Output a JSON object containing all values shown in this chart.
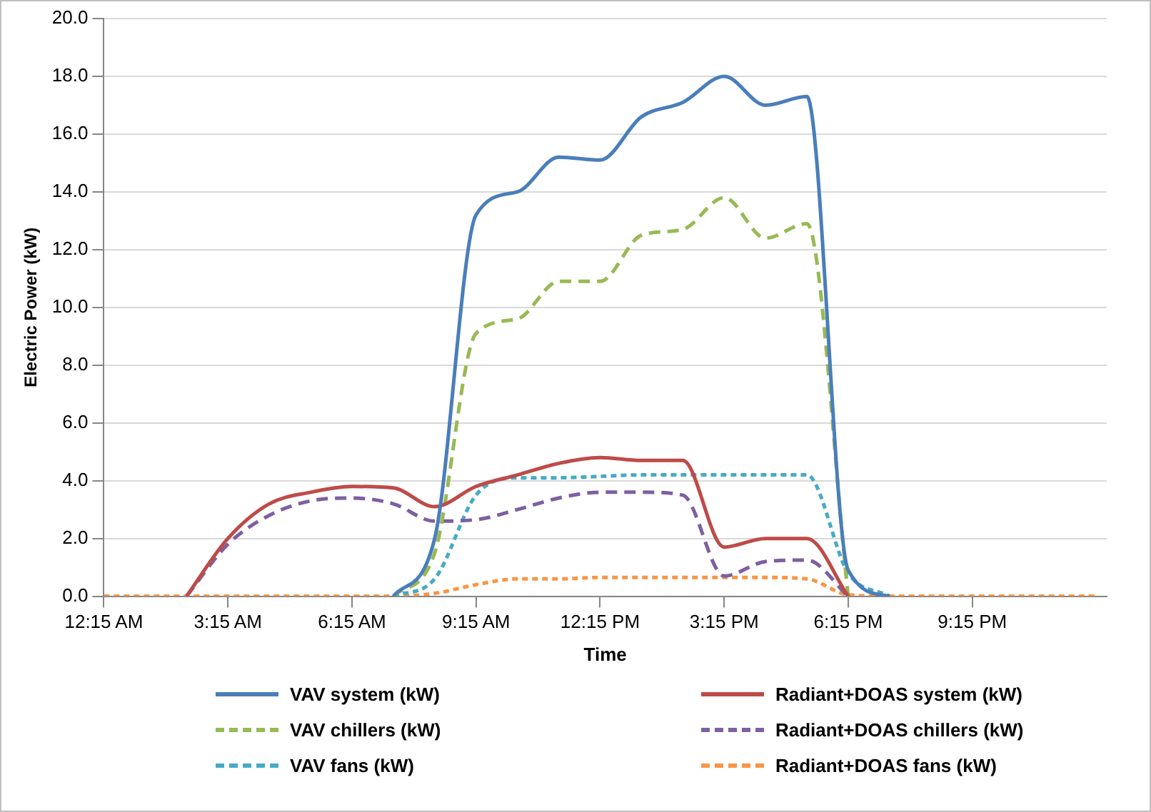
{
  "chart_data": {
    "type": "line",
    "xlabel": "Time",
    "ylabel": "Electric Power (kW)",
    "x": [
      0.25,
      1.25,
      2.25,
      3.25,
      4.25,
      5.25,
      6.25,
      7.25,
      8.25,
      9.25,
      10.25,
      11.25,
      12.25,
      13.25,
      14.25,
      15.25,
      16.25,
      17.25,
      18.25,
      19.25,
      20.25,
      21.25,
      22.25,
      23.25,
      24.25
    ],
    "series": [
      {
        "name": "VAV system (kW)",
        "color": "#4a7ebb",
        "line_style": "solid",
        "values": [
          null,
          null,
          null,
          null,
          null,
          null,
          null,
          0,
          2.0,
          13.2,
          14.0,
          15.2,
          15.1,
          16.6,
          17.1,
          18.0,
          17.0,
          17.3,
          0.9,
          0,
          null,
          null,
          null,
          null,
          null
        ]
      },
      {
        "name": "Radiant+DOAS system (kW)",
        "color": "#be4b48",
        "line_style": "solid",
        "values": [
          null,
          null,
          0,
          2.0,
          3.2,
          3.6,
          3.8,
          3.75,
          3.1,
          3.8,
          4.2,
          4.6,
          4.8,
          4.7,
          4.7,
          1.7,
          2.0,
          2.0,
          0,
          null,
          null,
          null,
          null,
          null,
          null
        ]
      },
      {
        "name": "VAV chillers (kW)",
        "color": "#98b954",
        "line_style": "dashed",
        "values": [
          null,
          null,
          null,
          null,
          null,
          null,
          null,
          0,
          1.5,
          9.1,
          9.6,
          10.9,
          10.9,
          12.5,
          12.7,
          13.8,
          12.4,
          12.9,
          0,
          null,
          null,
          null,
          null,
          null,
          null
        ]
      },
      {
        "name": "Radiant+DOAS chillers (kW)",
        "color": "#7d60a0",
        "line_style": "dashed",
        "values": [
          null,
          null,
          0,
          1.8,
          2.8,
          3.3,
          3.4,
          3.2,
          2.6,
          2.65,
          3.0,
          3.4,
          3.6,
          3.6,
          3.5,
          0.7,
          1.2,
          1.25,
          0,
          null,
          null,
          null,
          null,
          null,
          null
        ]
      },
      {
        "name": "VAV fans (kW)",
        "color": "#46aac5",
        "line_style": "dotted",
        "values": [
          null,
          null,
          null,
          null,
          null,
          null,
          null,
          0,
          0.6,
          3.5,
          4.1,
          4.1,
          4.15,
          4.2,
          4.2,
          4.2,
          4.2,
          4.2,
          0.8,
          0,
          null,
          null,
          null,
          null,
          null
        ]
      },
      {
        "name": "Radiant+DOAS fans (kW)",
        "color": "#f79646",
        "line_style": "dotted",
        "values": [
          0,
          0,
          0,
          0,
          0,
          0,
          0,
          0,
          0.1,
          0.4,
          0.6,
          0.6,
          0.65,
          0.65,
          0.65,
          0.65,
          0.65,
          0.6,
          0.05,
          0,
          0,
          0,
          0,
          0,
          0
        ]
      }
    ],
    "xlim": [
      0.25,
      24.5
    ],
    "xticks": [
      {
        "value": 0.25,
        "label": "12:15 AM"
      },
      {
        "value": 3.25,
        "label": "3:15 AM"
      },
      {
        "value": 6.25,
        "label": "6:15 AM"
      },
      {
        "value": 9.25,
        "label": "9:15 AM"
      },
      {
        "value": 12.25,
        "label": "12:15 PM"
      },
      {
        "value": 15.25,
        "label": "3:15 PM"
      },
      {
        "value": 18.25,
        "label": "6:15 PM"
      },
      {
        "value": 21.25,
        "label": "9:15 PM"
      }
    ],
    "ylim": [
      0,
      20
    ],
    "yticks": [
      {
        "value": 0,
        "label": "0.0"
      },
      {
        "value": 2,
        "label": "2.0"
      },
      {
        "value": 4,
        "label": "4.0"
      },
      {
        "value": 6,
        "label": "6.0"
      },
      {
        "value": 8,
        "label": "8.0"
      },
      {
        "value": 10,
        "label": "10.0"
      },
      {
        "value": 12,
        "label": "12.0"
      },
      {
        "value": 14,
        "label": "14.0"
      },
      {
        "value": 16,
        "label": "16.0"
      },
      {
        "value": 18,
        "label": "18.0"
      },
      {
        "value": 20,
        "label": "20.0"
      }
    ],
    "grid": "y",
    "legend": "bottom",
    "marker": "none"
  }
}
